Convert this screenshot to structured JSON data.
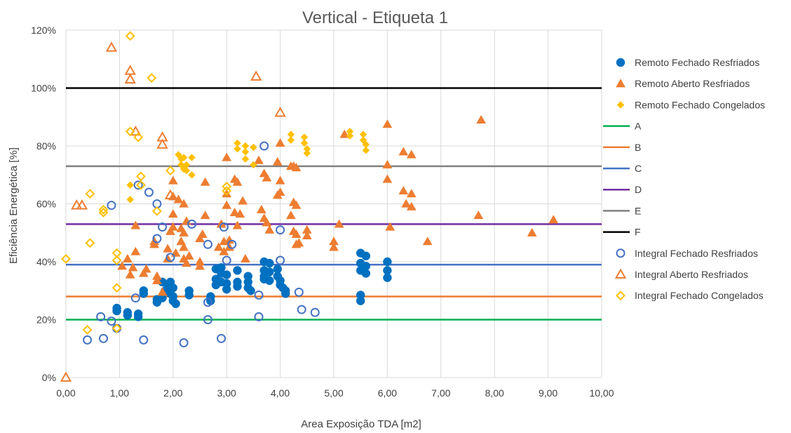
{
  "chart_data": {
    "type": "scatter",
    "title": "Vertical - Etiqueta 1",
    "xlabel": "Area Exposição TDA [m2]",
    "ylabel": "Eficiência Energética  [%]",
    "xlim": [
      0,
      10
    ],
    "ylim": [
      0,
      120
    ],
    "x_ticks": [
      0,
      1,
      2,
      3,
      4,
      5,
      6,
      7,
      8,
      9,
      10
    ],
    "x_tick_labels": [
      "0,00",
      "1,00",
      "2,00",
      "3,00",
      "4,00",
      "5,00",
      "6,00",
      "7,00",
      "8,00",
      "9,00",
      "10,00"
    ],
    "y_ticks": [
      0,
      20,
      40,
      60,
      80,
      100,
      120
    ],
    "y_tick_labels": [
      "0%",
      "20%",
      "40%",
      "60%",
      "80%",
      "100%",
      "120%"
    ],
    "grid": true,
    "legend_position": "right",
    "reference_lines": [
      {
        "name": "A",
        "y": 20,
        "color": "#00b050"
      },
      {
        "name": "B",
        "y": 28,
        "color": "#ed7d31"
      },
      {
        "name": "C",
        "y": 39,
        "color": "#4472c4"
      },
      {
        "name": "D",
        "y": 53,
        "color": "#7030a0"
      },
      {
        "name": "E",
        "y": 73,
        "color": "#808080"
      },
      {
        "name": "F",
        "y": 100,
        "color": "#000000"
      }
    ],
    "series": [
      {
        "name": "Remoto Fechado Resfriados",
        "marker": "circle-filled",
        "color": "#0070c0",
        "points": [
          [
            0.95,
            24
          ],
          [
            0.95,
            23
          ],
          [
            1.15,
            22.5
          ],
          [
            1.15,
            21.5
          ],
          [
            1.35,
            22
          ],
          [
            1.35,
            21
          ],
          [
            1.45,
            30
          ],
          [
            1.45,
            29
          ],
          [
            1.7,
            27
          ],
          [
            1.7,
            26
          ],
          [
            1.8,
            33
          ],
          [
            1.8,
            27.5
          ],
          [
            1.85,
            30
          ],
          [
            1.9,
            32
          ],
          [
            1.9,
            30
          ],
          [
            1.95,
            33
          ],
          [
            1.95,
            29
          ],
          [
            2.0,
            31
          ],
          [
            2.0,
            28
          ],
          [
            2.0,
            26.5
          ],
          [
            2.05,
            25.5
          ],
          [
            2.3,
            30
          ],
          [
            2.3,
            28.5
          ],
          [
            2.7,
            28
          ],
          [
            2.7,
            26.5
          ],
          [
            2.8,
            37.5
          ],
          [
            2.8,
            34
          ],
          [
            2.8,
            32
          ],
          [
            2.9,
            38
          ],
          [
            2.9,
            36
          ],
          [
            2.9,
            33
          ],
          [
            3.0,
            35.5
          ],
          [
            3.0,
            32.5
          ],
          [
            3.0,
            30.5
          ],
          [
            3.2,
            37
          ],
          [
            3.2,
            33
          ],
          [
            3.2,
            31.5
          ],
          [
            3.4,
            35
          ],
          [
            3.4,
            33
          ],
          [
            3.4,
            31
          ],
          [
            3.45,
            30
          ],
          [
            3.7,
            40
          ],
          [
            3.7,
            37
          ],
          [
            3.7,
            35
          ],
          [
            3.7,
            34
          ],
          [
            3.8,
            39.5
          ],
          [
            3.8,
            36.5
          ],
          [
            3.8,
            33.5
          ],
          [
            3.95,
            37.5
          ],
          [
            3.95,
            35
          ],
          [
            4.0,
            33.5
          ],
          [
            4.0,
            32
          ],
          [
            4.05,
            31
          ],
          [
            4.1,
            30
          ],
          [
            4.1,
            29
          ],
          [
            5.5,
            43
          ],
          [
            5.5,
            39.5
          ],
          [
            5.5,
            37
          ],
          [
            5.5,
            28.5
          ],
          [
            5.5,
            26.5
          ],
          [
            5.6,
            42
          ],
          [
            5.6,
            38.5
          ],
          [
            5.6,
            36
          ],
          [
            6.0,
            40
          ],
          [
            6.0,
            37
          ],
          [
            6.0,
            34.5
          ]
        ]
      },
      {
        "name": "Remoto Aberto Resfriados",
        "marker": "triangle-filled",
        "color": "#ed7d31",
        "points": [
          [
            1.05,
            38.5
          ],
          [
            1.15,
            41
          ],
          [
            1.2,
            35.5
          ],
          [
            1.25,
            38
          ],
          [
            1.3,
            52.5
          ],
          [
            1.3,
            43.5
          ],
          [
            1.45,
            36
          ],
          [
            1.5,
            37.5
          ],
          [
            1.65,
            47
          ],
          [
            1.65,
            46
          ],
          [
            1.7,
            35
          ],
          [
            1.7,
            33.5
          ],
          [
            1.8,
            29.5
          ],
          [
            1.9,
            44.5
          ],
          [
            1.9,
            41
          ],
          [
            1.95,
            50.5
          ],
          [
            2.0,
            68
          ],
          [
            2.0,
            62.5
          ],
          [
            2.0,
            56.5
          ],
          [
            2.0,
            52
          ],
          [
            2.05,
            43
          ],
          [
            2.1,
            61.5
          ],
          [
            2.15,
            51.5
          ],
          [
            2.15,
            47
          ],
          [
            2.2,
            60
          ],
          [
            2.2,
            50
          ],
          [
            2.2,
            45
          ],
          [
            2.2,
            41
          ],
          [
            2.25,
            54
          ],
          [
            2.25,
            39.5
          ],
          [
            2.3,
            42
          ],
          [
            2.5,
            48
          ],
          [
            2.5,
            40
          ],
          [
            2.5,
            38.5
          ],
          [
            2.55,
            49.5
          ],
          [
            2.6,
            67.5
          ],
          [
            2.6,
            56
          ],
          [
            2.85,
            45
          ],
          [
            2.9,
            53
          ],
          [
            2.95,
            47
          ],
          [
            2.95,
            43.5
          ],
          [
            3.0,
            76
          ],
          [
            3.0,
            63.5
          ],
          [
            3.0,
            59.5
          ],
          [
            3.05,
            47.5
          ],
          [
            3.05,
            45
          ],
          [
            3.15,
            68.5
          ],
          [
            3.15,
            57
          ],
          [
            3.2,
            67.5
          ],
          [
            3.2,
            52.5
          ],
          [
            3.25,
            56.5
          ],
          [
            3.3,
            61
          ],
          [
            3.35,
            41
          ],
          [
            3.6,
            75
          ],
          [
            3.65,
            58
          ],
          [
            3.7,
            70.5
          ],
          [
            3.7,
            55
          ],
          [
            3.75,
            69
          ],
          [
            3.75,
            53.5
          ],
          [
            3.8,
            51
          ],
          [
            3.95,
            74.5
          ],
          [
            3.95,
            63
          ],
          [
            4.0,
            81
          ],
          [
            4.0,
            68
          ],
          [
            4.0,
            64
          ],
          [
            4.2,
            73
          ],
          [
            4.2,
            56
          ],
          [
            4.25,
            73
          ],
          [
            4.25,
            60.5
          ],
          [
            4.25,
            50.5
          ],
          [
            4.3,
            72.5
          ],
          [
            4.3,
            59.5
          ],
          [
            4.3,
            49.5
          ],
          [
            4.3,
            46
          ],
          [
            4.35,
            46.5
          ],
          [
            4.5,
            51
          ],
          [
            4.5,
            49
          ],
          [
            5.0,
            47
          ],
          [
            5.0,
            45
          ],
          [
            5.1,
            53
          ],
          [
            5.2,
            84
          ],
          [
            6.0,
            87.5
          ],
          [
            6.0,
            73.5
          ],
          [
            6.0,
            68.5
          ],
          [
            6.05,
            52
          ],
          [
            6.3,
            78
          ],
          [
            6.3,
            64.5
          ],
          [
            6.35,
            60
          ],
          [
            6.45,
            77
          ],
          [
            6.45,
            63.5
          ],
          [
            6.45,
            59
          ],
          [
            6.75,
            47
          ],
          [
            7.7,
            56
          ],
          [
            7.75,
            89
          ],
          [
            8.7,
            50
          ],
          [
            9.1,
            54.5
          ]
        ]
      },
      {
        "name": "Remoto Fechado Congelados",
        "marker": "diamond-filled",
        "color": "#ffc000",
        "points": [
          [
            1.2,
            66.5
          ],
          [
            1.2,
            61.5
          ],
          [
            2.1,
            77
          ],
          [
            2.15,
            75.5
          ],
          [
            2.15,
            73.5
          ],
          [
            2.2,
            76
          ],
          [
            2.2,
            72
          ],
          [
            2.25,
            73.5
          ],
          [
            2.25,
            71.5
          ],
          [
            2.35,
            76
          ],
          [
            2.35,
            70
          ],
          [
            3.2,
            81
          ],
          [
            3.2,
            79
          ],
          [
            3.35,
            80
          ],
          [
            3.35,
            78
          ],
          [
            3.35,
            75.5
          ],
          [
            3.5,
            79.5
          ],
          [
            3.5,
            73.5
          ],
          [
            4.2,
            84
          ],
          [
            4.2,
            82
          ],
          [
            4.45,
            83
          ],
          [
            4.45,
            81
          ],
          [
            4.5,
            79
          ],
          [
            4.5,
            77.5
          ],
          [
            5.3,
            85
          ],
          [
            5.3,
            83.5
          ],
          [
            5.55,
            84
          ],
          [
            5.55,
            82
          ],
          [
            5.6,
            80.5
          ],
          [
            5.6,
            78.5
          ]
        ]
      },
      {
        "name": "Integral Fechado Resfriados",
        "marker": "circle-open",
        "color": "#4472c4",
        "points": [
          [
            0.4,
            13
          ],
          [
            0.65,
            21
          ],
          [
            0.7,
            13.5
          ],
          [
            0.85,
            59.5
          ],
          [
            0.85,
            19.5
          ],
          [
            0.95,
            17
          ],
          [
            1.3,
            27.5
          ],
          [
            1.35,
            66.5
          ],
          [
            1.45,
            13
          ],
          [
            1.55,
            64
          ],
          [
            1.7,
            60
          ],
          [
            1.7,
            48
          ],
          [
            1.8,
            52
          ],
          [
            1.95,
            41.5
          ],
          [
            2.2,
            12
          ],
          [
            2.35,
            53
          ],
          [
            2.65,
            46
          ],
          [
            2.65,
            26
          ],
          [
            2.65,
            20
          ],
          [
            2.9,
            13.5
          ],
          [
            2.95,
            52
          ],
          [
            3.0,
            40.5
          ],
          [
            3.1,
            46
          ],
          [
            3.6,
            28.5
          ],
          [
            3.6,
            21
          ],
          [
            3.7,
            80
          ],
          [
            4.0,
            51
          ],
          [
            4.0,
            40.5
          ],
          [
            4.35,
            29.5
          ],
          [
            4.4,
            23.5
          ],
          [
            4.65,
            22.5
          ]
        ]
      },
      {
        "name": "Integral Aberto Resfriados",
        "marker": "triangle-open",
        "color": "#ed7d31",
        "points": [
          [
            0.0,
            0
          ],
          [
            0.2,
            59.5
          ],
          [
            0.3,
            59.5
          ],
          [
            0.85,
            114
          ],
          [
            1.2,
            106
          ],
          [
            1.2,
            103
          ],
          [
            1.3,
            85
          ],
          [
            1.8,
            83
          ],
          [
            1.8,
            80.5
          ],
          [
            1.95,
            63
          ],
          [
            3.55,
            104
          ],
          [
            4.0,
            91.5
          ]
        ]
      },
      {
        "name": "Integral Fechado Congelados",
        "marker": "diamond-open",
        "color": "#ffc000",
        "points": [
          [
            0.0,
            41
          ],
          [
            0.4,
            16.5
          ],
          [
            0.45,
            46.5
          ],
          [
            0.45,
            63.5
          ],
          [
            0.7,
            58
          ],
          [
            0.7,
            57
          ],
          [
            0.95,
            43
          ],
          [
            0.95,
            40.5
          ],
          [
            0.95,
            31
          ],
          [
            0.95,
            17
          ],
          [
            1.2,
            118
          ],
          [
            1.2,
            85
          ],
          [
            1.35,
            83
          ],
          [
            1.4,
            69.5
          ],
          [
            1.4,
            66.5
          ],
          [
            1.6,
            103.5
          ],
          [
            1.7,
            57.5
          ],
          [
            1.95,
            71.5
          ],
          [
            3.0,
            66
          ],
          [
            3.0,
            64.5
          ]
        ]
      }
    ]
  }
}
